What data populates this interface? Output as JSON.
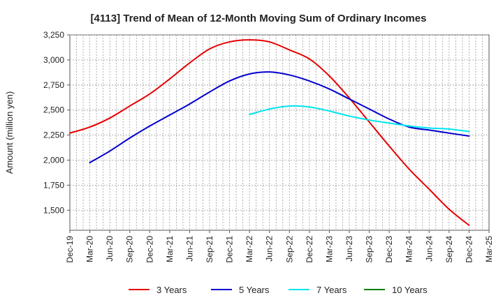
{
  "chart_data": {
    "type": "line",
    "title": "[4113]  Trend of Mean of 12-Month Moving Sum of Ordinary Incomes",
    "xlabel": "",
    "ylabel": "Amount (million yen)",
    "ylim": [
      1300,
      3250
    ],
    "yticks": [
      1500,
      1750,
      2000,
      2250,
      2500,
      2750,
      3000,
      3250
    ],
    "ytick_labels": [
      "1,500",
      "1,750",
      "2,000",
      "2,250",
      "2,500",
      "2,750",
      "3,000",
      "3,250"
    ],
    "x_labels": [
      "Dec-19",
      "Mar-20",
      "Jun-20",
      "Sep-20",
      "Dec-20",
      "Mar-21",
      "Jun-21",
      "Sep-21",
      "Dec-21",
      "Mar-22",
      "Jun-22",
      "Sep-22",
      "Dec-22",
      "Mar-23",
      "Jun-23",
      "Sep-23",
      "Dec-23",
      "Mar-24",
      "Jun-24",
      "Sep-24",
      "Dec-24",
      "Mar-25"
    ],
    "grid": true,
    "legend_position": "bottom",
    "series": [
      {
        "name": "3 Years",
        "color": "#e60000",
        "start_index": 0,
        "values": [
          2270,
          2330,
          2420,
          2540,
          2660,
          2810,
          2970,
          3110,
          3180,
          3200,
          3180,
          3100,
          3010,
          2840,
          2620,
          2380,
          2140,
          1910,
          1710,
          1510,
          1350
        ]
      },
      {
        "name": "5 Years",
        "color": "#0000cc",
        "start_index": 1,
        "values": [
          1975,
          2090,
          2220,
          2340,
          2450,
          2560,
          2680,
          2790,
          2860,
          2880,
          2850,
          2790,
          2710,
          2610,
          2510,
          2410,
          2330,
          2300,
          2270,
          2240
        ]
      },
      {
        "name": "7 Years",
        "color": "#00e5ee",
        "start_index": 9,
        "values": [
          2455,
          2510,
          2540,
          2530,
          2490,
          2440,
          2400,
          2370,
          2340,
          2320,
          2310,
          2285
        ]
      },
      {
        "name": "10 Years",
        "color": "#008000",
        "start_index": 0,
        "values": []
      }
    ]
  }
}
